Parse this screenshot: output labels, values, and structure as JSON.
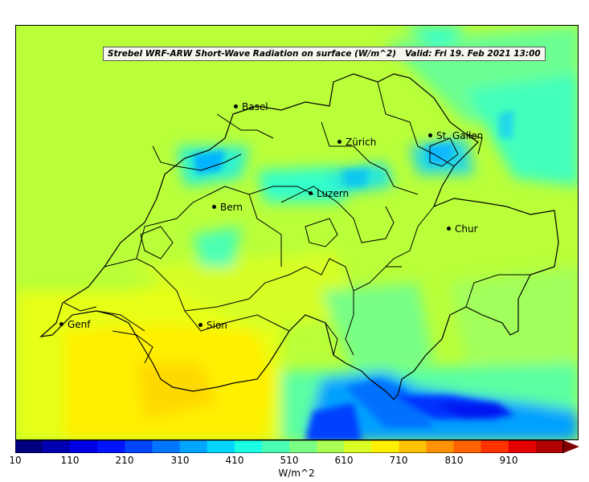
{
  "title": "Strebel WRF-ARW Short-Wave Radiation on surface (W/m^2)",
  "valid": "Valid: Fri 19. Feb 2021 13:00",
  "cities": [
    {
      "name": "Basel"
    },
    {
      "name": "Zürich"
    },
    {
      "name": "St. Gallen"
    },
    {
      "name": "Luzern"
    },
    {
      "name": "Bern"
    },
    {
      "name": "Chur"
    },
    {
      "name": "Genf"
    },
    {
      "name": "Sion"
    }
  ],
  "colorbar": {
    "ticks": [
      "10",
      "110",
      "210",
      "310",
      "410",
      "510",
      "610",
      "710",
      "810",
      "910"
    ],
    "units": "W/m^2",
    "range": [
      10,
      1010
    ],
    "colors": [
      "#00007f",
      "#0000b2",
      "#0000e5",
      "#0015ff",
      "#0045ff",
      "#0075ff",
      "#00a5ff",
      "#00d5ff",
      "#1affe4",
      "#4affb4",
      "#7aff84",
      "#aaff54",
      "#daff24",
      "#ffef00",
      "#ffc200",
      "#ff9200",
      "#ff6200",
      "#ff3200",
      "#e50000",
      "#b20000",
      "#7f0000"
    ]
  },
  "colors": {
    "background_field": "#b9ff3a",
    "border": "#000000"
  }
}
